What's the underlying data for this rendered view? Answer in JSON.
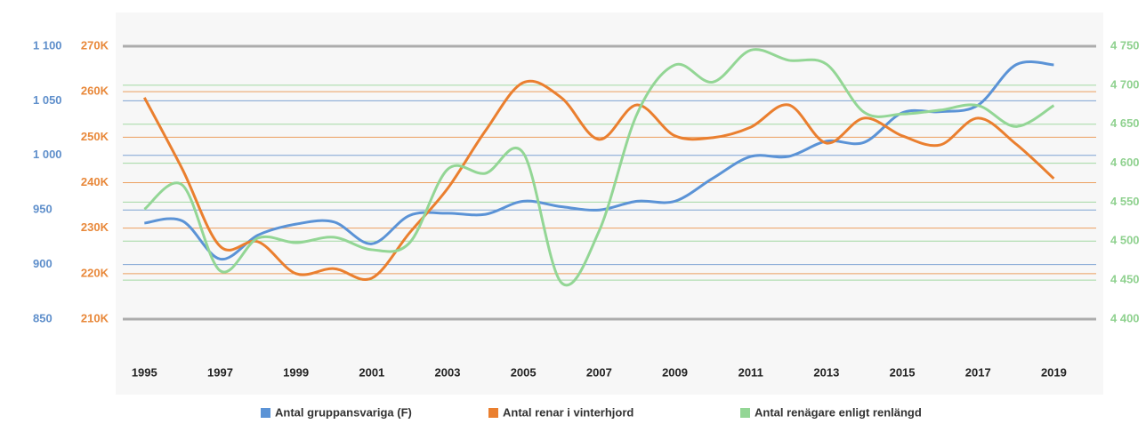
{
  "chart_data": {
    "type": "line",
    "x": [
      1995,
      1996,
      1997,
      1998,
      1999,
      2000,
      2001,
      2002,
      2003,
      2004,
      2005,
      2006,
      2007,
      2008,
      2009,
      2010,
      2011,
      2012,
      2013,
      2014,
      2015,
      2016,
      2017,
      2018,
      2019
    ],
    "xlim": [
      1994.5,
      2020
    ],
    "xticks": [
      1995,
      1997,
      1999,
      2001,
      2003,
      2005,
      2007,
      2009,
      2011,
      2013,
      2015,
      2017,
      2019
    ],
    "axes": [
      {
        "name": "blue",
        "color": "#5f8fcb",
        "lim": [
          850,
          1100
        ],
        "ticks": [
          850,
          {
            "value": 900,
            "label": "900"
          },
          {
            "value": 950,
            "label": "950"
          },
          {
            "value": 1000,
            "label": "1 000"
          },
          {
            "value": 1050,
            "label": "1 050"
          },
          {
            "value": 1100,
            "label": "1 100"
          }
        ]
      },
      {
        "name": "orange",
        "color": "#e8883a",
        "lim": [
          210000,
          270000
        ],
        "ticks": [
          {
            "value": 210000,
            "label": "210K"
          },
          {
            "value": 220000,
            "label": "220K"
          },
          {
            "value": 230000,
            "label": "230K"
          },
          {
            "value": 240000,
            "label": "240K"
          },
          {
            "value": 250000,
            "label": "250K"
          },
          {
            "value": 260000,
            "label": "260K"
          },
          {
            "value": 270000,
            "label": "270K"
          }
        ]
      },
      {
        "name": "green",
        "color": "#8fd18f",
        "lim": [
          4400,
          4750
        ],
        "ticks": [
          {
            "value": 4400,
            "label": "4 400"
          },
          {
            "value": 4450,
            "label": "4 450"
          },
          {
            "value": 4500,
            "label": "4 500"
          },
          {
            "value": 4550,
            "label": "4 550"
          },
          {
            "value": 4600,
            "label": "4 600"
          },
          {
            "value": 4650,
            "label": "4 650"
          },
          {
            "value": 4700,
            "label": "4 700"
          },
          {
            "value": 4750,
            "label": "4 750"
          }
        ]
      }
    ],
    "series": [
      {
        "name": "Antal gruppansvariga (F)",
        "color": "#5b93d6",
        "axis": 0,
        "values": [
          938,
          940,
          905,
          927,
          937,
          939,
          919,
          945,
          947,
          946,
          958,
          953,
          950,
          958,
          958,
          979,
          999,
          999,
          1013,
          1012,
          1039,
          1040,
          1046,
          1083,
          1083
        ]
      },
      {
        "name": "Antal renar i vinterhjord",
        "color": "#ea7f2f",
        "axis": 1,
        "values": [
          258700,
          243000,
          226000,
          227000,
          220000,
          221100,
          219000,
          229000,
          238700,
          251400,
          262000,
          258700,
          249500,
          257100,
          250300,
          249900,
          252200,
          257100,
          248700,
          254200,
          250300,
          248300,
          254200,
          248500,
          240900
        ]
      },
      {
        "name": "Antal renägare enligt renlängd",
        "color": "#93d695",
        "axis": 2,
        "values": [
          4541,
          4572,
          4462,
          4504,
          4498,
          4505,
          4489,
          4498,
          4592,
          4587,
          4613,
          4447,
          4513,
          4663,
          4726,
          4704,
          4745,
          4732,
          4727,
          4665,
          4663,
          4668,
          4674,
          4647,
          4674
        ]
      }
    ],
    "grid": true
  }
}
